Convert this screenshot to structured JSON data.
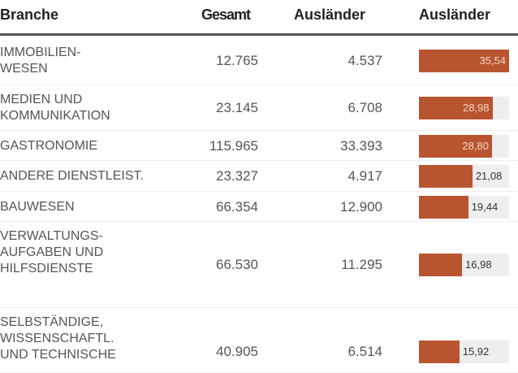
{
  "header": {
    "branche": "Branche",
    "gesamt": "Gesamt",
    "auslaender": "Ausländer",
    "auslaender_pct": "Ausländer"
  },
  "bar_color": "#b85530",
  "bar_max": 35.54,
  "rows": [
    {
      "name": "IMMOBILIEN-\nWESEN",
      "gesamt": "12.765",
      "auslaender": "4.537",
      "pct": "35,54",
      "value": 35.54
    },
    {
      "name": "MEDIEN UND\nKOMMUNIKATION",
      "gesamt": "23.145",
      "auslaender": "6.708",
      "pct": "28,98",
      "value": 28.98
    },
    {
      "name": "GASTRONOMIE",
      "gesamt": "115.965",
      "auslaender": "33.393",
      "pct": "28,80",
      "value": 28.8
    },
    {
      "name": "ANDERE DIENSTLEIST.",
      "gesamt": "23.327",
      "auslaender": "4.917",
      "pct": "21,08",
      "value": 21.08
    },
    {
      "name": "BAUWESEN",
      "gesamt": "66.354",
      "auslaender": "12.900",
      "pct": "19,44",
      "value": 19.44
    },
    {
      "name": "VERWALTUNGS-\nAUFGABEN UND\nHILFSDIENSTE",
      "gesamt": "66.530",
      "auslaender": "11.295",
      "pct": "16,98",
      "value": 16.98
    },
    {
      "name": "SELBSTÄNDIGE,\nWISSENSCHAFTL.\nUND TECHNISCHE",
      "gesamt": "40.905",
      "auslaender": "6.514",
      "pct": "15,92",
      "value": 15.92
    }
  ]
}
